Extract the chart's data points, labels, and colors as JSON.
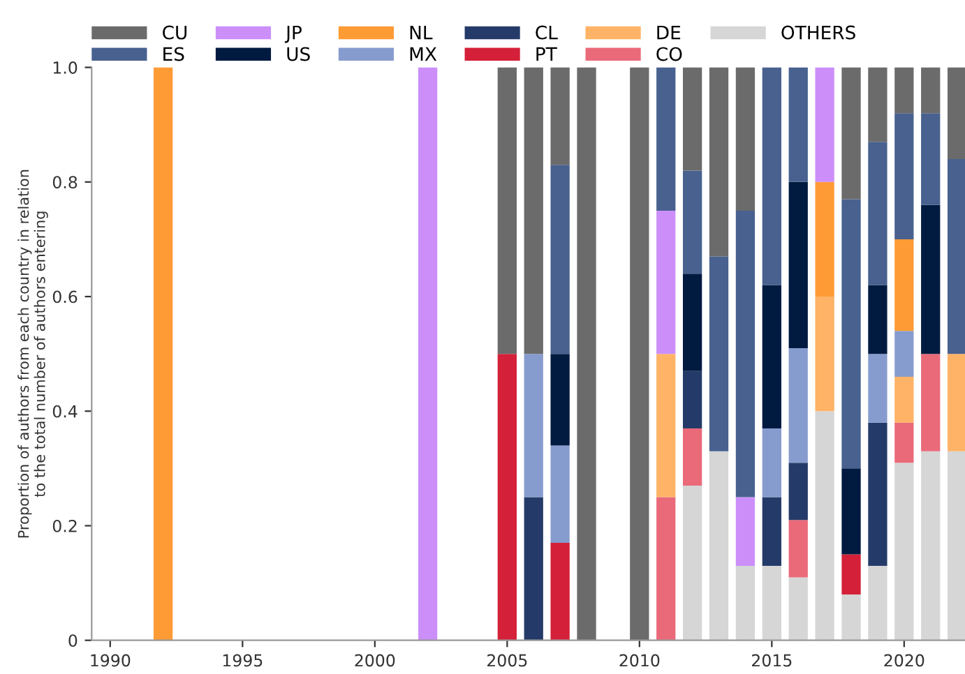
{
  "chart_data": {
    "type": "bar",
    "stacked": true,
    "ylabel": "Proportion of authors from each country in relation\nto the total number of authors entering",
    "x": [
      1992,
      2002,
      2005,
      2006,
      2007,
      2008,
      2010,
      2011,
      2012,
      2013,
      2014,
      2015,
      2016,
      2017,
      2018,
      2019,
      2020,
      2021,
      2022
    ],
    "xlim": [
      1989.3,
      2022.3
    ],
    "xticks": [
      1990,
      1995,
      2000,
      2005,
      2010,
      2015,
      2020
    ],
    "ylim": [
      0,
      1
    ],
    "yticks": [
      0,
      0.2,
      0.4,
      0.6,
      0.8,
      {
        "value": 1,
        "label": "1.0"
      }
    ],
    "grid": false,
    "legend": "top",
    "series": [
      {
        "name": "OTHERS",
        "color": "#d6d6d6",
        "values": [
          null,
          null,
          null,
          null,
          null,
          null,
          null,
          null,
          0.27,
          0.33,
          0.13,
          0.13,
          0.11,
          0.4,
          0.08,
          0.13,
          0.31,
          0.33,
          0.33
        ]
      },
      {
        "name": "CO",
        "color": "#ea6a7a",
        "values": [
          null,
          null,
          null,
          null,
          null,
          null,
          null,
          0.25,
          0.1,
          null,
          null,
          null,
          0.1,
          null,
          null,
          null,
          0.07,
          0.17,
          null
        ]
      },
      {
        "name": "DE",
        "color": "#ffb366",
        "values": [
          null,
          null,
          null,
          null,
          null,
          null,
          null,
          0.25,
          null,
          null,
          null,
          null,
          null,
          0.2,
          null,
          null,
          0.08,
          null,
          0.17
        ]
      },
      {
        "name": "PT",
        "color": "#d42038",
        "values": [
          null,
          null,
          0.5,
          null,
          0.17,
          null,
          null,
          null,
          null,
          null,
          null,
          null,
          null,
          null,
          0.07,
          null,
          null,
          null,
          null
        ]
      },
      {
        "name": "CL",
        "color": "#243b69",
        "values": [
          null,
          null,
          null,
          0.25,
          null,
          null,
          null,
          null,
          0.1,
          null,
          null,
          0.12,
          0.1,
          null,
          null,
          0.25,
          null,
          null,
          null
        ]
      },
      {
        "name": "MX",
        "color": "#879cce",
        "values": [
          null,
          null,
          null,
          0.25,
          0.17,
          null,
          null,
          null,
          null,
          null,
          null,
          0.12,
          0.2,
          null,
          null,
          0.12,
          0.08,
          null,
          null
        ]
      },
      {
        "name": "NL",
        "color": "#ff9b35",
        "values": [
          1,
          null,
          null,
          null,
          null,
          null,
          null,
          null,
          null,
          null,
          null,
          null,
          null,
          0.2,
          null,
          null,
          0.16,
          null,
          null
        ]
      },
      {
        "name": "US",
        "color": "#001a40",
        "values": [
          null,
          null,
          null,
          null,
          0.16,
          null,
          null,
          null,
          0.17,
          null,
          null,
          0.25,
          0.29,
          null,
          0.15,
          0.12,
          null,
          0.26,
          null
        ]
      },
      {
        "name": "JP",
        "color": "#cc8ffa",
        "values": [
          null,
          1,
          null,
          null,
          null,
          null,
          null,
          0.25,
          null,
          null,
          0.12,
          null,
          null,
          0.2,
          null,
          null,
          null,
          null,
          null
        ]
      },
      {
        "name": "ES",
        "color": "#48618f",
        "values": [
          null,
          null,
          null,
          null,
          0.33,
          null,
          null,
          0.25,
          0.18,
          0.34,
          0.5,
          0.38,
          0.2,
          null,
          0.47,
          0.25,
          0.22,
          0.16,
          0.34
        ]
      },
      {
        "name": "CU",
        "color": "#6b6b6b",
        "values": [
          null,
          null,
          0.5,
          0.5,
          0.17,
          1,
          1,
          null,
          0.18,
          0.33,
          0.25,
          null,
          null,
          null,
          0.23,
          0.13,
          0.08,
          0.08,
          0.16
        ]
      }
    ]
  }
}
